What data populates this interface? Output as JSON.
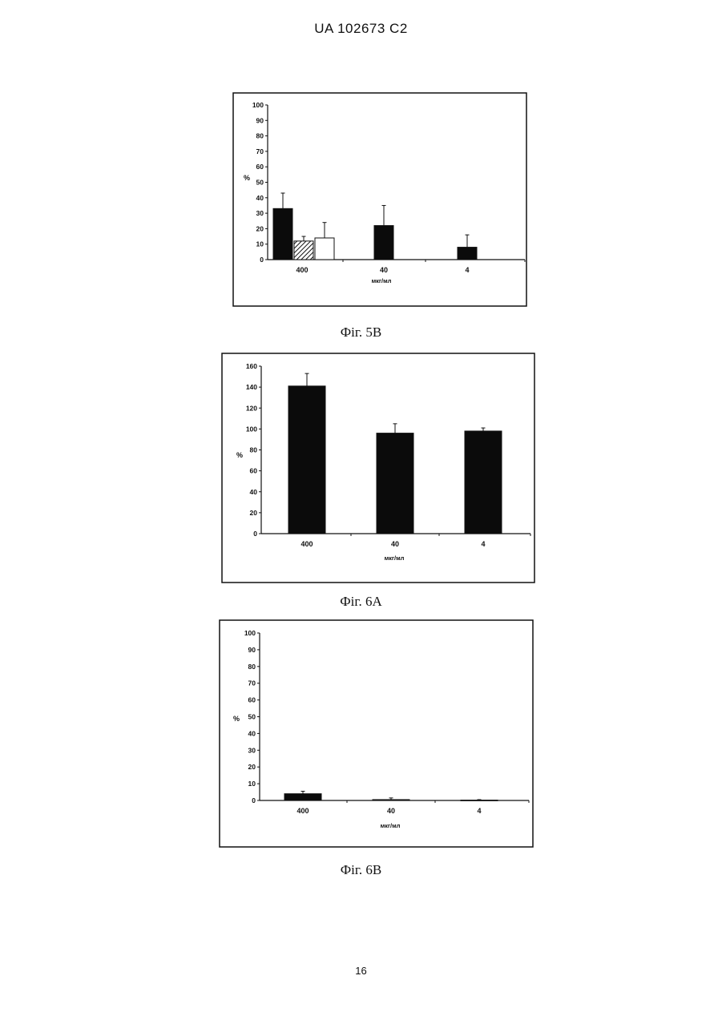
{
  "page": {
    "header": "UA   102673   C2",
    "page_number": "16"
  },
  "colors": {
    "bar_black": "#0b0b0b",
    "bar_white": "#ffffff",
    "frame": "#111111"
  },
  "chart_data": [
    {
      "id": "fig5b",
      "caption": "Фіг. 5В",
      "type": "bar",
      "ylabel": "%",
      "xlabel": "мкг/мл",
      "ylim": [
        0,
        100
      ],
      "yticks": [
        0,
        10,
        20,
        30,
        40,
        50,
        60,
        70,
        80,
        90,
        100
      ],
      "categories": [
        "400",
        "40",
        "4"
      ],
      "series": [
        {
          "fill": "black",
          "values": [
            33,
            22,
            8
          ],
          "errors": [
            10,
            13,
            8
          ]
        },
        {
          "fill": "hatched",
          "values": [
            12,
            null,
            null
          ],
          "errors": [
            3,
            null,
            null
          ]
        },
        {
          "fill": "white",
          "values": [
            14,
            null,
            null
          ],
          "errors": [
            10,
            null,
            null
          ]
        }
      ],
      "grid": false
    },
    {
      "id": "fig6a",
      "caption": "Фіг. 6А",
      "type": "bar",
      "ylabel": "%",
      "xlabel": "мкг/мл",
      "ylim": [
        0,
        160
      ],
      "yticks": [
        0,
        20,
        40,
        60,
        80,
        100,
        120,
        140,
        160
      ],
      "categories": [
        "400",
        "40",
        "4"
      ],
      "series": [
        {
          "fill": "black",
          "values": [
            141,
            96,
            98
          ],
          "errors": [
            12,
            9,
            3
          ]
        }
      ],
      "grid": false
    },
    {
      "id": "fig6b",
      "caption": "Фіг. 6В",
      "type": "bar",
      "ylabel": "%",
      "xlabel": "мкг/мл",
      "ylim": [
        0,
        100
      ],
      "yticks": [
        0,
        10,
        20,
        30,
        40,
        50,
        60,
        70,
        80,
        90,
        100
      ],
      "categories": [
        "400",
        "40",
        "4"
      ],
      "series": [
        {
          "fill": "black",
          "values": [
            4,
            0.5,
            0.2
          ],
          "errors": [
            1.5,
            1,
            0.3
          ]
        }
      ],
      "grid": false
    }
  ]
}
